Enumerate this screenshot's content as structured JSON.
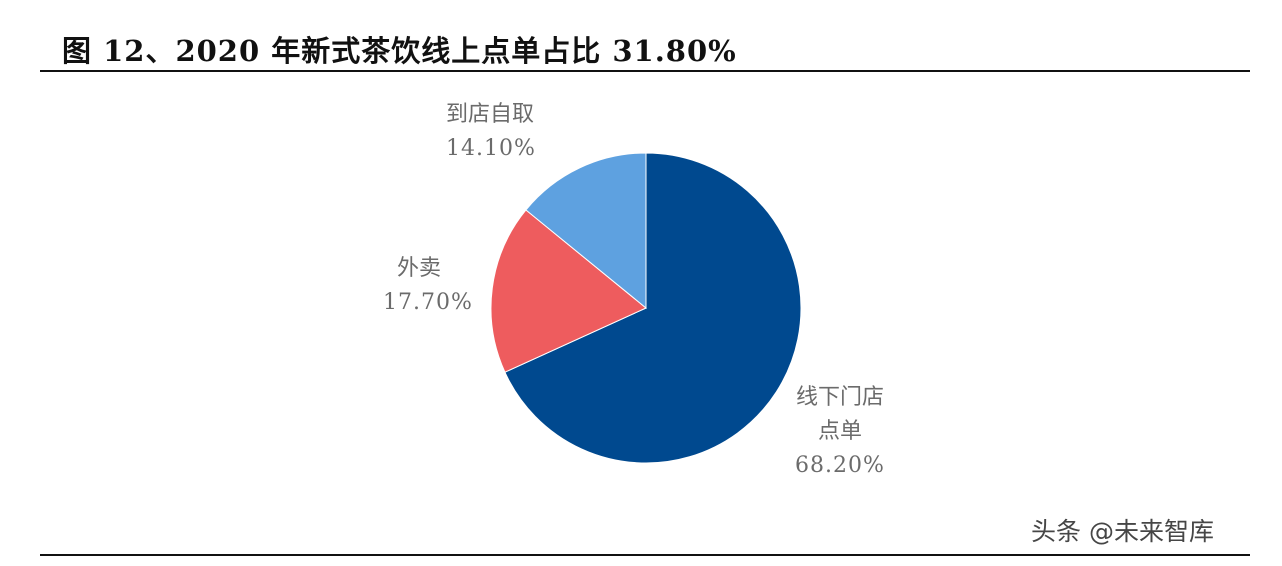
{
  "figure": {
    "title": "图 12、2020 年新式茶饮线上点单占比 31.80%"
  },
  "chart_data": {
    "type": "pie",
    "title": "图 12、2020 年新式茶饮线上点单占比 31.80%",
    "start_angle_deg": 0,
    "direction": "clockwise",
    "slices": [
      {
        "label_lines": [
          "线下门店",
          "点单"
        ],
        "value": 68.2,
        "value_label": "68.20%",
        "color": "#00498f"
      },
      {
        "label_lines": [
          "外卖"
        ],
        "value": 17.7,
        "value_label": "17.70%",
        "color": "#ee5c5e"
      },
      {
        "label_lines": [
          "到店自取"
        ],
        "value": 14.1,
        "value_label": "14.10%",
        "color": "#5ea1e0"
      }
    ]
  },
  "labels": {
    "offline_line1": "线下门店",
    "offline_line2": "点单",
    "offline_value": "68.20%",
    "delivery_line1": "外卖",
    "delivery_value": "17.70%",
    "pickup_line1": "到店自取",
    "pickup_value": "14.10%"
  },
  "watermark": {
    "text": "头条 @未来智库"
  }
}
